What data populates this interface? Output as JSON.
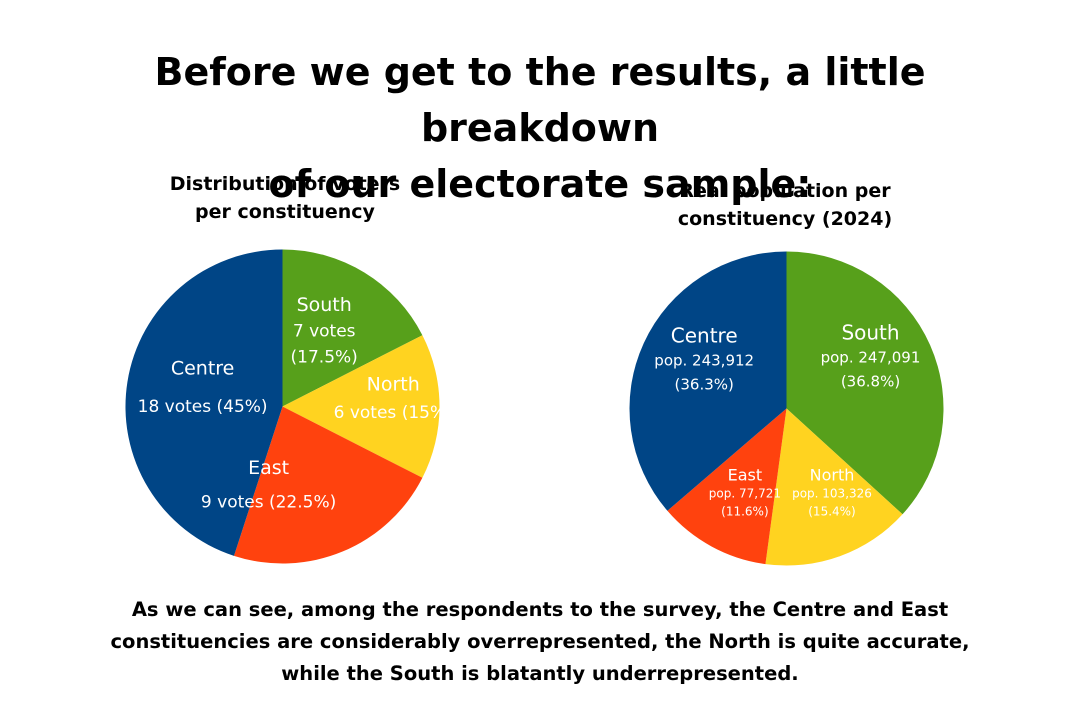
{
  "headline": {
    "line1": "Before we get to the results, a little breakdown",
    "line2": "of our electorate sample:"
  },
  "conclusion": {
    "line1": "As we can see, among the respondents to the survey, the Centre and East",
    "line2": "constituencies are considerably overrepresented, the North is quite accurate,",
    "line3": "while the South is blatantly underrepresented."
  },
  "chart_data": [
    {
      "type": "pie",
      "title_lines": [
        "Distribution of voters",
        "per constituency"
      ],
      "slices": [
        {
          "name": "South",
          "value": 7,
          "detail": [
            "7 votes",
            "(17.5%)"
          ],
          "color": "#57A01B"
        },
        {
          "name": "North",
          "value": 6,
          "detail": [
            "6 votes (15%)"
          ],
          "color": "#FFD320"
        },
        {
          "name": "East",
          "value": 9,
          "detail": [
            "9 votes (22.5%)"
          ],
          "color": "#FF420E"
        },
        {
          "name": "Centre",
          "value": 18,
          "detail": [
            "18 votes (45%)"
          ],
          "color": "#004586"
        }
      ]
    },
    {
      "type": "pie",
      "title_lines": [
        "Real population per",
        "constituency (2024)"
      ],
      "slices": [
        {
          "name": "South",
          "value": 247091,
          "detail": [
            "pop. 247,091",
            "(36.8%)"
          ],
          "color": "#57A01B"
        },
        {
          "name": "North",
          "value": 103326,
          "detail": [
            "pop. 103,326",
            "(15.4%)"
          ],
          "color": "#FFD320"
        },
        {
          "name": "East",
          "value": 77721,
          "detail": [
            "pop. 77,721",
            "(11.6%)"
          ],
          "color": "#FF420E"
        },
        {
          "name": "Centre",
          "value": 243912,
          "detail": [
            "pop. 243,912",
            "(36.3%)"
          ],
          "color": "#004586"
        }
      ]
    }
  ]
}
